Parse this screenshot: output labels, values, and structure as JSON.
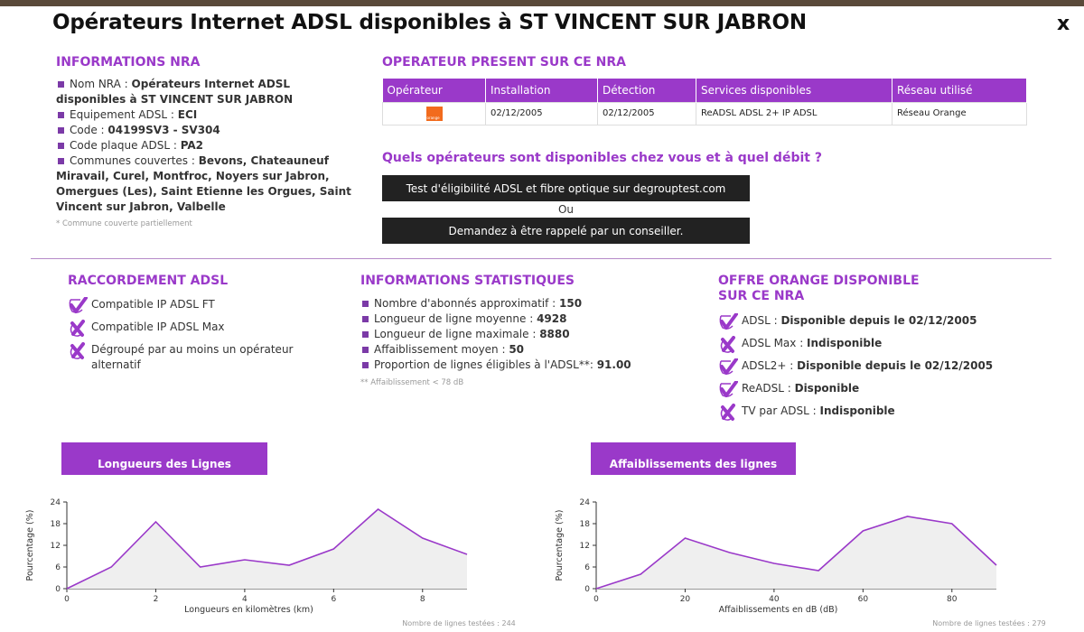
{
  "title": "Opérateurs Internet ADSL disponibles à ST VINCENT SUR JABRON",
  "close_label": "x",
  "nra": {
    "heading": "INFORMATIONS NRA",
    "items": [
      {
        "label": "Nom NRA : ",
        "value": "Opérateurs Internet ADSL disponibles à ST VINCENT SUR JABRON"
      },
      {
        "label": "Equipement ADSL : ",
        "value": "ECI"
      },
      {
        "label": "Code : ",
        "value": "04199SV3 - SV304"
      },
      {
        "label": "Code plaque ADSL : ",
        "value": "PA2"
      },
      {
        "label": "Communes couvertes : ",
        "value": "Bevons, Chateauneuf Miravail, Curel, Montfroc, Noyers sur Jabron, Omergues (Les), Saint Etienne les Orgues, Saint Vincent sur Jabron, Valbelle"
      }
    ],
    "note": "* Commune couverte partiellement"
  },
  "operators": {
    "heading": "OPERATEUR PRESENT SUR CE NRA",
    "columns": [
      "Opérateur",
      "Installation",
      "Détection",
      "Services disponibles",
      "Réseau utilisé"
    ],
    "rows": [
      {
        "logo": "orange",
        "installation": "02/12/2005",
        "detection": "02/12/2005",
        "services": "ReADSL ADSL 2+ IP ADSL",
        "reseau": "Réseau Orange"
      }
    ]
  },
  "availability": {
    "question": "Quels opérateurs sont disponibles chez vous et à quel débit ?",
    "test_button": "Test d'éligibilité ADSL et fibre optique sur degrouptest.com",
    "or_text": "Ou",
    "callback_button": "Demandez à être rappelé par un conseiller."
  },
  "raccordement": {
    "heading": "RACCORDEMENT ADSL",
    "items": [
      {
        "status": "check",
        "text": "Compatible IP ADSL FT"
      },
      {
        "status": "cross",
        "text": "Compatible IP ADSL Max"
      },
      {
        "status": "cross",
        "text": "Dégroupé par au moins un opérateur alternatif"
      }
    ]
  },
  "stats": {
    "heading": "INFORMATIONS STATISTIQUES",
    "items": [
      {
        "label": "Nombre d'abonnés approximatif : ",
        "value": "150"
      },
      {
        "label": "Longueur de ligne moyenne : ",
        "value": "4928"
      },
      {
        "label": "Longueur de ligne maximale : ",
        "value": "8880"
      },
      {
        "label": "Affaiblissement moyen : ",
        "value": "50"
      },
      {
        "label": "Proportion de lignes éligibles à l'ADSL**: ",
        "value": "91.00"
      }
    ],
    "note": "** Affaiblissement < 78 dB"
  },
  "offre": {
    "heading_line1": "OFFRE ORANGE DISPONIBLE",
    "heading_line2": "SUR CE NRA",
    "items": [
      {
        "status": "check",
        "label": "ADSL : ",
        "value": "Disponible depuis le 02/12/2005"
      },
      {
        "status": "cross",
        "label": "ADSL Max : ",
        "value": "Indisponible"
      },
      {
        "status": "check",
        "label": "ADSL2+ : ",
        "value": "Disponible depuis le 02/12/2005"
      },
      {
        "status": "check",
        "label": "ReADSL : ",
        "value": "Disponible"
      },
      {
        "status": "cross",
        "label": "TV par ADSL : ",
        "value": "Indisponible"
      }
    ]
  },
  "colors": {
    "accent": "#9a39c9",
    "dark_button": "#222222",
    "line": "#9a39c9",
    "fill": "#efefef"
  },
  "chart_data": [
    {
      "type": "area",
      "title": "Longueurs des Lignes",
      "xlabel": "Longueurs en kilomètres (km)",
      "ylabel": "Pourcentage (%)",
      "x": [
        0,
        1,
        2,
        3,
        4,
        5,
        6,
        7,
        8,
        9
      ],
      "values": [
        0,
        6,
        18.5,
        6,
        8,
        6.5,
        11,
        22,
        14,
        9.5
      ],
      "xlim": [
        0,
        9
      ],
      "ylim": [
        0,
        24
      ],
      "xticks": [
        0,
        2,
        4,
        6,
        8
      ],
      "yticks": [
        0,
        6,
        12,
        18,
        24
      ],
      "footer": "Nombre de lignes testées : 244"
    },
    {
      "type": "area",
      "title": "Affaiblissements des lignes",
      "xlabel": "Affaiblissements en dB (dB)",
      "ylabel": "Pourcentage (%)",
      "x": [
        0,
        10,
        20,
        30,
        40,
        50,
        60,
        70,
        80,
        90
      ],
      "values": [
        0,
        4,
        14,
        10,
        7,
        5,
        16,
        20,
        18,
        6.5
      ],
      "xlim": [
        0,
        90
      ],
      "ylim": [
        0,
        24
      ],
      "xticks": [
        0,
        20,
        40,
        60,
        80
      ],
      "yticks": [
        0,
        6,
        12,
        18,
        24
      ],
      "footer": "Nombre de lignes testées : 279"
    }
  ]
}
